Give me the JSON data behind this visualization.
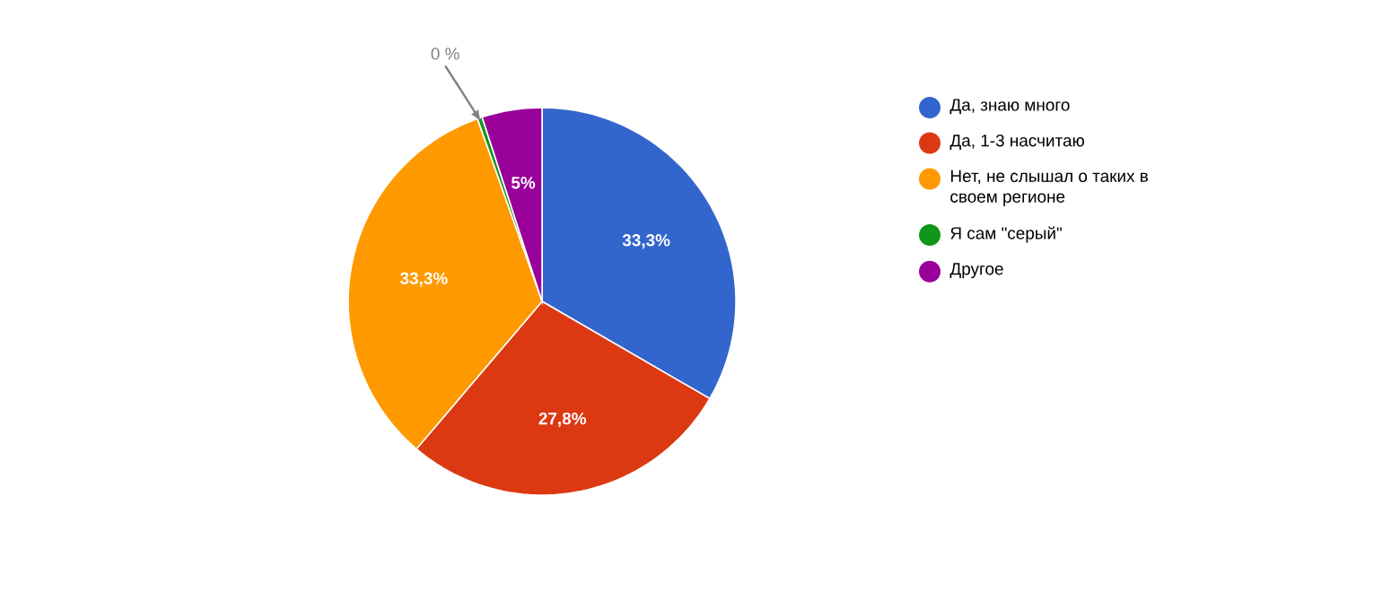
{
  "chart_data": {
    "type": "pie",
    "categories": [
      "Да, знаю много",
      "Да, 1-3 насчитаю",
      "Нет, не слышал о таких в своем регионе",
      "Я сам \"серый\"",
      "Другое"
    ],
    "values": [
      33.3,
      27.8,
      33.3,
      0.4,
      5
    ],
    "colors": [
      "#3366cc",
      "#dc3912",
      "#ff9900",
      "#109618",
      "#990099"
    ],
    "value_labels": [
      "33,3%",
      "27,8%",
      "33,3%",
      "0 %",
      "5%"
    ],
    "legend": "right"
  }
}
